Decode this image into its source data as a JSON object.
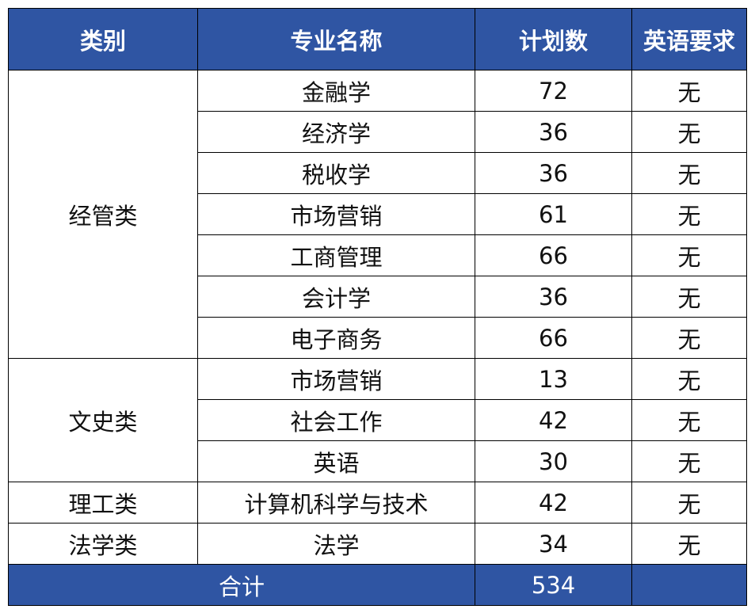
{
  "header": [
    "类别",
    "专业名称",
    "计划数",
    "英语要求"
  ],
  "groups": [
    {
      "category": "经管类",
      "rows": [
        [
          "金融学",
          72,
          "无"
        ],
        [
          "经济学",
          36,
          "无"
        ],
        [
          "税收学",
          36,
          "无"
        ],
        [
          "市场营销",
          61,
          "无"
        ],
        [
          "工商管理",
          66,
          "无"
        ],
        [
          "会计学",
          36,
          "无"
        ],
        [
          "电子商务",
          66,
          "无"
        ]
      ]
    },
    {
      "category": "文史类",
      "rows": [
        [
          "市场营销",
          13,
          "无"
        ],
        [
          "社会工作",
          42,
          "无"
        ],
        [
          "英语",
          30,
          "无"
        ]
      ]
    },
    {
      "category": "理工类",
      "rows": [
        [
          "计算机科学与技术",
          42,
          "无"
        ]
      ]
    },
    {
      "category": "法学类",
      "rows": [
        [
          "法学",
          34,
          "无"
        ]
      ]
    }
  ],
  "footer": {
    "label": "合计",
    "total": 534
  }
}
